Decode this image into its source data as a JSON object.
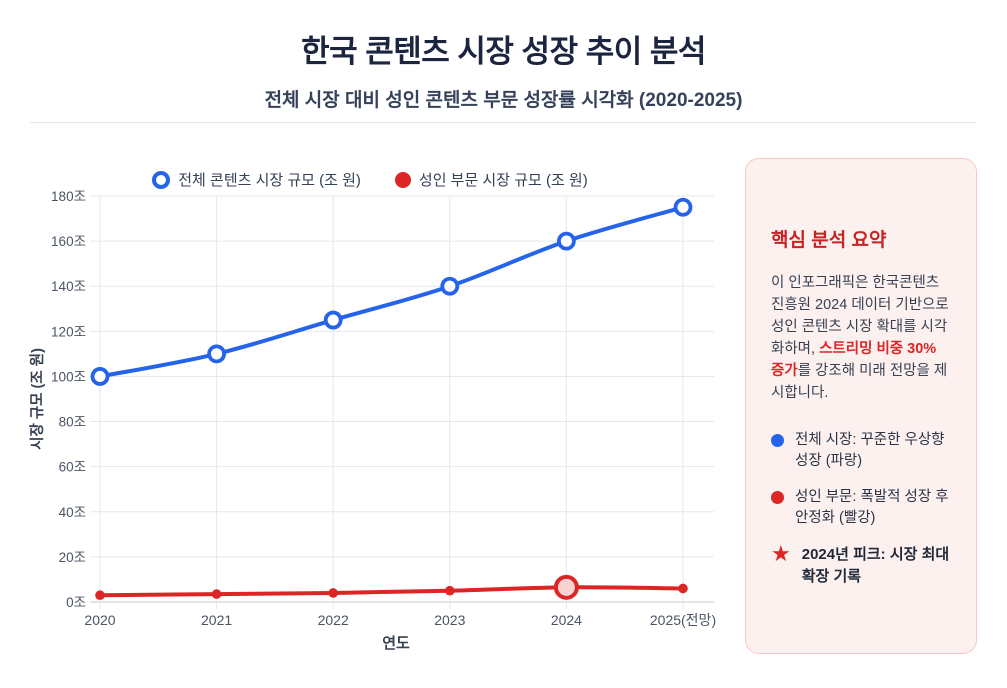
{
  "header": {
    "title": "한국 콘텐츠 시장 성장 추이 분석",
    "subtitle": "전체 시장 대비 성인 콘텐츠 부문 성장률 시각화 (2020-2025)"
  },
  "icons": {
    "star": "★",
    "open_circle_marker": "open-circle",
    "filled_circle_marker": "filled-circle"
  },
  "chart_data": {
    "type": "line",
    "x": [
      "2020",
      "2021",
      "2022",
      "2023",
      "2024",
      "2025(전망)"
    ],
    "xlabel": "연도",
    "ylabel": "시장 규모 (조 원)",
    "ylim": [
      0,
      180
    ],
    "ytick_step": 20,
    "ytick_suffix": "조",
    "grid": true,
    "legend_position": "top-center",
    "series": [
      {
        "name": "전체 콘텐츠 시장 규모 (조 원)",
        "color": "#2563eb",
        "marker": "open-circle",
        "values": [
          100,
          110,
          125,
          140,
          160,
          175
        ]
      },
      {
        "name": "성인 부문 시장 규모 (조 원)",
        "color": "#dc2626",
        "marker": "filled-circle",
        "values": [
          3,
          3.5,
          4,
          5,
          6.5,
          6
        ],
        "highlight": {
          "index": 4,
          "fill": "#f9d2d2"
        }
      }
    ],
    "axis_colors": {
      "grid": "#e5e7eb",
      "axis": "#d1d5db",
      "tick_text": "#4b5563",
      "axis_title": "#374151"
    }
  },
  "summary_panel": {
    "title": "핵심 분석 요약",
    "body_before": "이 인포그래픽은 한국콘텐츠진흥원 2024 데이터 기반으로 성인 콘텐츠 시장 확대를 시각화하며, ",
    "body_highlight": "스트리밍 비중 30% 증가",
    "body_after": "를 강조해 미래 전망을 제시합니다.",
    "bullets": [
      {
        "icon": "blue-dot",
        "color": "#2563eb",
        "text": "전체 시장: 꾸준한 우상향 성장 (파랑)",
        "bold": false
      },
      {
        "icon": "red-dot",
        "color": "#dc2626",
        "text": "성인 부문: 폭발적 성장 후 안정화 (빨강)",
        "bold": false
      },
      {
        "icon": "red-star",
        "color": "#dc2626",
        "text": "2024년 피크: 시장 최대 확장 기록",
        "bold": true
      }
    ],
    "colors": {
      "bg": "#fdf1f0",
      "border": "#f6c6c6",
      "title": "#c62424",
      "highlight": "#dc2626"
    }
  }
}
